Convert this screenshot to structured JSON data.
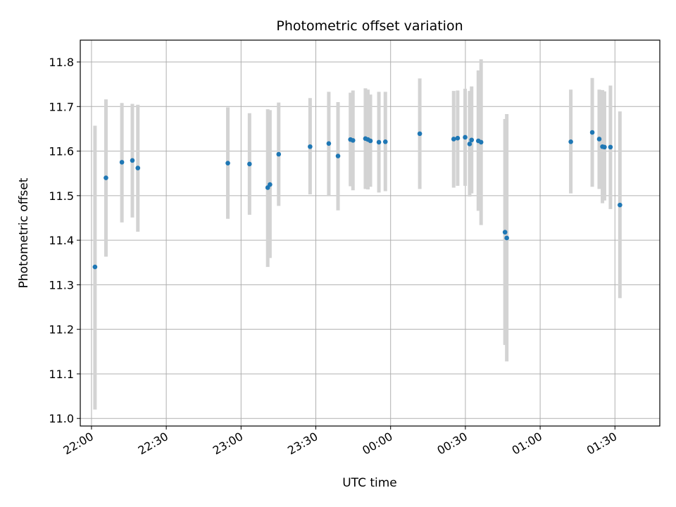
{
  "chart_data": {
    "type": "scatter",
    "title": "Photometric offset variation",
    "xlabel": "UTC time",
    "ylabel": "Photometric offset",
    "x_unit": "minutes after 22:00 UTC",
    "xlim": [
      -4.5,
      228
    ],
    "ylim": [
      10.983,
      11.849
    ],
    "grid": true,
    "x_ticks": [
      {
        "value": 0,
        "label": "22:00"
      },
      {
        "value": 30,
        "label": "22:30"
      },
      {
        "value": 60,
        "label": "23:00"
      },
      {
        "value": 90,
        "label": "23:30"
      },
      {
        "value": 120,
        "label": "00:00"
      },
      {
        "value": 150,
        "label": "00:30"
      },
      {
        "value": 180,
        "label": "01:00"
      },
      {
        "value": 210,
        "label": "01:30"
      }
    ],
    "y_ticks": [
      {
        "value": 11.0,
        "label": "11.0"
      },
      {
        "value": 11.1,
        "label": "11.1"
      },
      {
        "value": 11.2,
        "label": "11.2"
      },
      {
        "value": 11.3,
        "label": "11.3"
      },
      {
        "value": 11.4,
        "label": "11.4"
      },
      {
        "value": 11.5,
        "label": "11.5"
      },
      {
        "value": 11.6,
        "label": "11.6"
      },
      {
        "value": 11.7,
        "label": "11.7"
      },
      {
        "value": 11.8,
        "label": "11.8"
      }
    ],
    "colors": {
      "point": "#1f77b4",
      "errorbar": "#d3d3d3",
      "grid": "#b0b0b0"
    },
    "points": [
      {
        "x": 1.4,
        "y": 11.34,
        "low": 11.02,
        "high": 11.657
      },
      {
        "x": 5.8,
        "y": 11.54,
        "low": 11.363,
        "high": 11.716
      },
      {
        "x": 12.2,
        "y": 11.575,
        "low": 11.44,
        "high": 11.708
      },
      {
        "x": 16.4,
        "y": 11.579,
        "low": 11.451,
        "high": 11.706
      },
      {
        "x": 18.6,
        "y": 11.562,
        "low": 11.419,
        "high": 11.704
      },
      {
        "x": 54.7,
        "y": 11.573,
        "low": 11.448,
        "high": 11.698
      },
      {
        "x": 63.4,
        "y": 11.571,
        "low": 11.457,
        "high": 11.685
      },
      {
        "x": 70.7,
        "y": 11.518,
        "low": 11.34,
        "high": 11.694
      },
      {
        "x": 71.6,
        "y": 11.525,
        "low": 11.36,
        "high": 11.692
      },
      {
        "x": 75.1,
        "y": 11.593,
        "low": 11.477,
        "high": 11.709
      },
      {
        "x": 87.7,
        "y": 11.61,
        "low": 11.503,
        "high": 11.719
      },
      {
        "x": 95.2,
        "y": 11.617,
        "low": 11.5,
        "high": 11.733
      },
      {
        "x": 98.9,
        "y": 11.589,
        "low": 11.467,
        "high": 11.71
      },
      {
        "x": 103.9,
        "y": 11.626,
        "low": 11.521,
        "high": 11.731
      },
      {
        "x": 104.9,
        "y": 11.624,
        "low": 11.512,
        "high": 11.736
      },
      {
        "x": 109.9,
        "y": 11.628,
        "low": 11.515,
        "high": 11.741
      },
      {
        "x": 110.9,
        "y": 11.626,
        "low": 11.514,
        "high": 11.738
      },
      {
        "x": 111.9,
        "y": 11.623,
        "low": 11.52,
        "high": 11.727
      },
      {
        "x": 115.3,
        "y": 11.62,
        "low": 11.507,
        "high": 11.733
      },
      {
        "x": 117.9,
        "y": 11.621,
        "low": 11.51,
        "high": 11.733
      },
      {
        "x": 131.7,
        "y": 11.639,
        "low": 11.515,
        "high": 11.763
      },
      {
        "x": 145.3,
        "y": 11.627,
        "low": 11.518,
        "high": 11.735
      },
      {
        "x": 146.9,
        "y": 11.629,
        "low": 11.522,
        "high": 11.736
      },
      {
        "x": 149.9,
        "y": 11.631,
        "low": 11.522,
        "high": 11.74
      },
      {
        "x": 151.7,
        "y": 11.616,
        "low": 11.498,
        "high": 11.735
      },
      {
        "x": 152.5,
        "y": 11.625,
        "low": 11.505,
        "high": 11.745
      },
      {
        "x": 155.2,
        "y": 11.623,
        "low": 11.466,
        "high": 11.781
      },
      {
        "x": 156.3,
        "y": 11.62,
        "low": 11.434,
        "high": 11.806
      },
      {
        "x": 165.9,
        "y": 11.418,
        "low": 11.165,
        "high": 11.672
      },
      {
        "x": 166.6,
        "y": 11.405,
        "low": 11.128,
        "high": 11.683
      },
      {
        "x": 192.3,
        "y": 11.621,
        "low": 11.505,
        "high": 11.738
      },
      {
        "x": 200.9,
        "y": 11.642,
        "low": 11.52,
        "high": 11.764
      },
      {
        "x": 203.7,
        "y": 11.627,
        "low": 11.515,
        "high": 11.738
      },
      {
        "x": 205.0,
        "y": 11.61,
        "low": 11.483,
        "high": 11.737
      },
      {
        "x": 205.8,
        "y": 11.609,
        "low": 11.489,
        "high": 11.734
      },
      {
        "x": 208.2,
        "y": 11.609,
        "low": 11.47,
        "high": 11.747
      },
      {
        "x": 212.0,
        "y": 11.479,
        "low": 11.27,
        "high": 11.689
      }
    ]
  }
}
